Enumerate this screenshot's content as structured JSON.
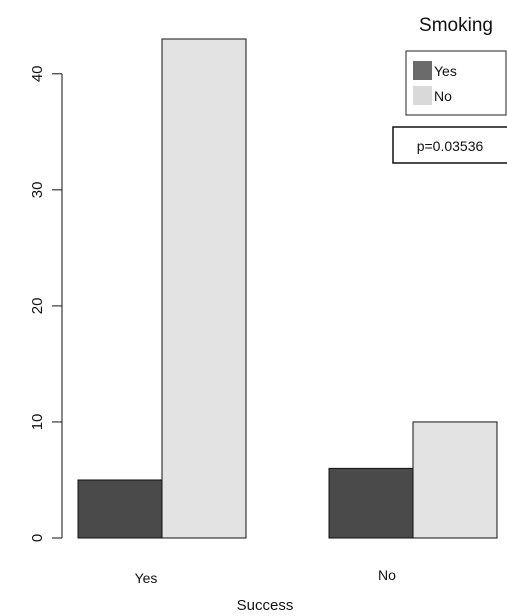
{
  "chart_data": {
    "type": "bar",
    "categories": [
      "Yes",
      "No"
    ],
    "series": [
      {
        "name": "Yes",
        "values": [
          5,
          6
        ],
        "color": "#4a4a4a"
      },
      {
        "name": "No",
        "values": [
          43,
          10
        ],
        "color": "#e3e3e3"
      }
    ],
    "xlabel": "Success",
    "ylabel": "",
    "ylim": [
      0,
      43
    ],
    "yticks": [
      0,
      10,
      20,
      30,
      40
    ],
    "grid": false,
    "legend": {
      "title": "Smoking",
      "position": "top-right",
      "entries": [
        {
          "label": "Yes",
          "color": "#6b6b6b"
        },
        {
          "label": "No",
          "color": "#d9d9d9"
        }
      ]
    },
    "annotations": [
      {
        "text": "p=0.03536",
        "position": "top-right"
      }
    ]
  }
}
